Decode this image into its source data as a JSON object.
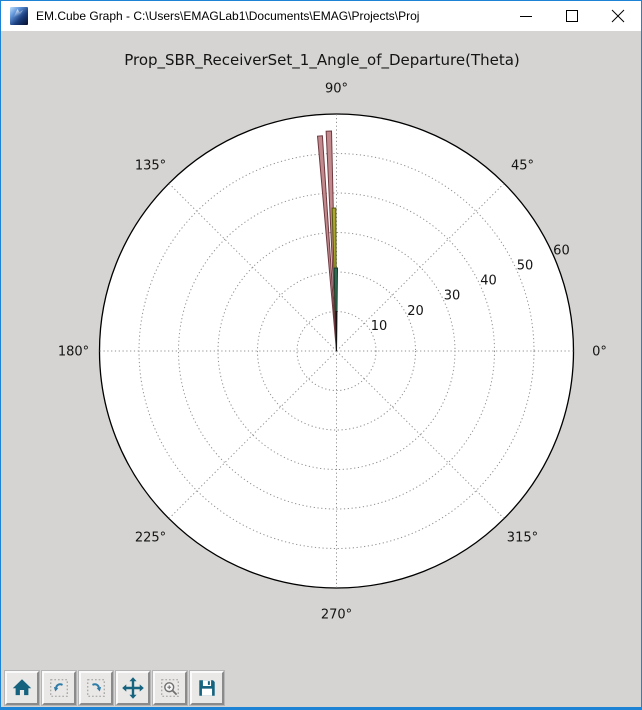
{
  "window": {
    "title": "EM.Cube Graph - C:\\Users\\EMAGLab1\\Documents\\EMAG\\Projects\\Proj",
    "controls": [
      "minimize",
      "maximize",
      "close"
    ]
  },
  "colors": {
    "window_border": "#1d83d4",
    "figure_background": "#d5d4d2",
    "axes_background": "#ffffff",
    "grid": "#8f8f8f",
    "icon_teal": "#15637f",
    "icon_blue": "#2e7ba8",
    "icon_gray": "#6f6f6f"
  },
  "toolbar": {
    "buttons": [
      {
        "name": "home"
      },
      {
        "name": "back"
      },
      {
        "name": "forward"
      },
      {
        "name": "pan"
      },
      {
        "name": "zoom-to-rect"
      },
      {
        "name": "save"
      }
    ]
  },
  "chart_data": {
    "type": "polar_bar",
    "title": "Prop_SBR_ReceiverSet_1_Angle_of_Departure(Theta)",
    "rmax": 60,
    "r_ticks": [
      10,
      20,
      30,
      40,
      50,
      60
    ],
    "r_label_angle_deg": 22.5,
    "grid": "dotted",
    "angle_ticks": [
      {
        "deg": 0,
        "label": "0°"
      },
      {
        "deg": 45,
        "label": "45°"
      },
      {
        "deg": 90,
        "label": "90°"
      },
      {
        "deg": 135,
        "label": "135°"
      },
      {
        "deg": 180,
        "label": "180°"
      },
      {
        "deg": 225,
        "label": "225°"
      },
      {
        "deg": 270,
        "label": "270°"
      },
      {
        "deg": 315,
        "label": "315°"
      }
    ],
    "bars": [
      {
        "angle_deg": 94.4,
        "value": 54.6,
        "width_deg": 1.3,
        "fill": "#c28a8d",
        "stroke": "#6e3a40"
      },
      {
        "angle_deg": 92.0,
        "value": 55.7,
        "width_deg": 1.4,
        "fill": "#c28a8d",
        "stroke": "#6e3a40"
      },
      {
        "angle_deg": 91.0,
        "value": 36.2,
        "width_deg": 1.5,
        "fill": "#a9a72e",
        "stroke": "#54540f"
      },
      {
        "angle_deg": 90.5,
        "value": 21.0,
        "width_deg": 2.4,
        "fill": "#2e6b52",
        "stroke": "#143d2b"
      },
      {
        "angle_deg": 90.1,
        "value": 10.0,
        "width_deg": 0.8,
        "fill": "#1c1c1c",
        "stroke": "#111111"
      }
    ]
  }
}
